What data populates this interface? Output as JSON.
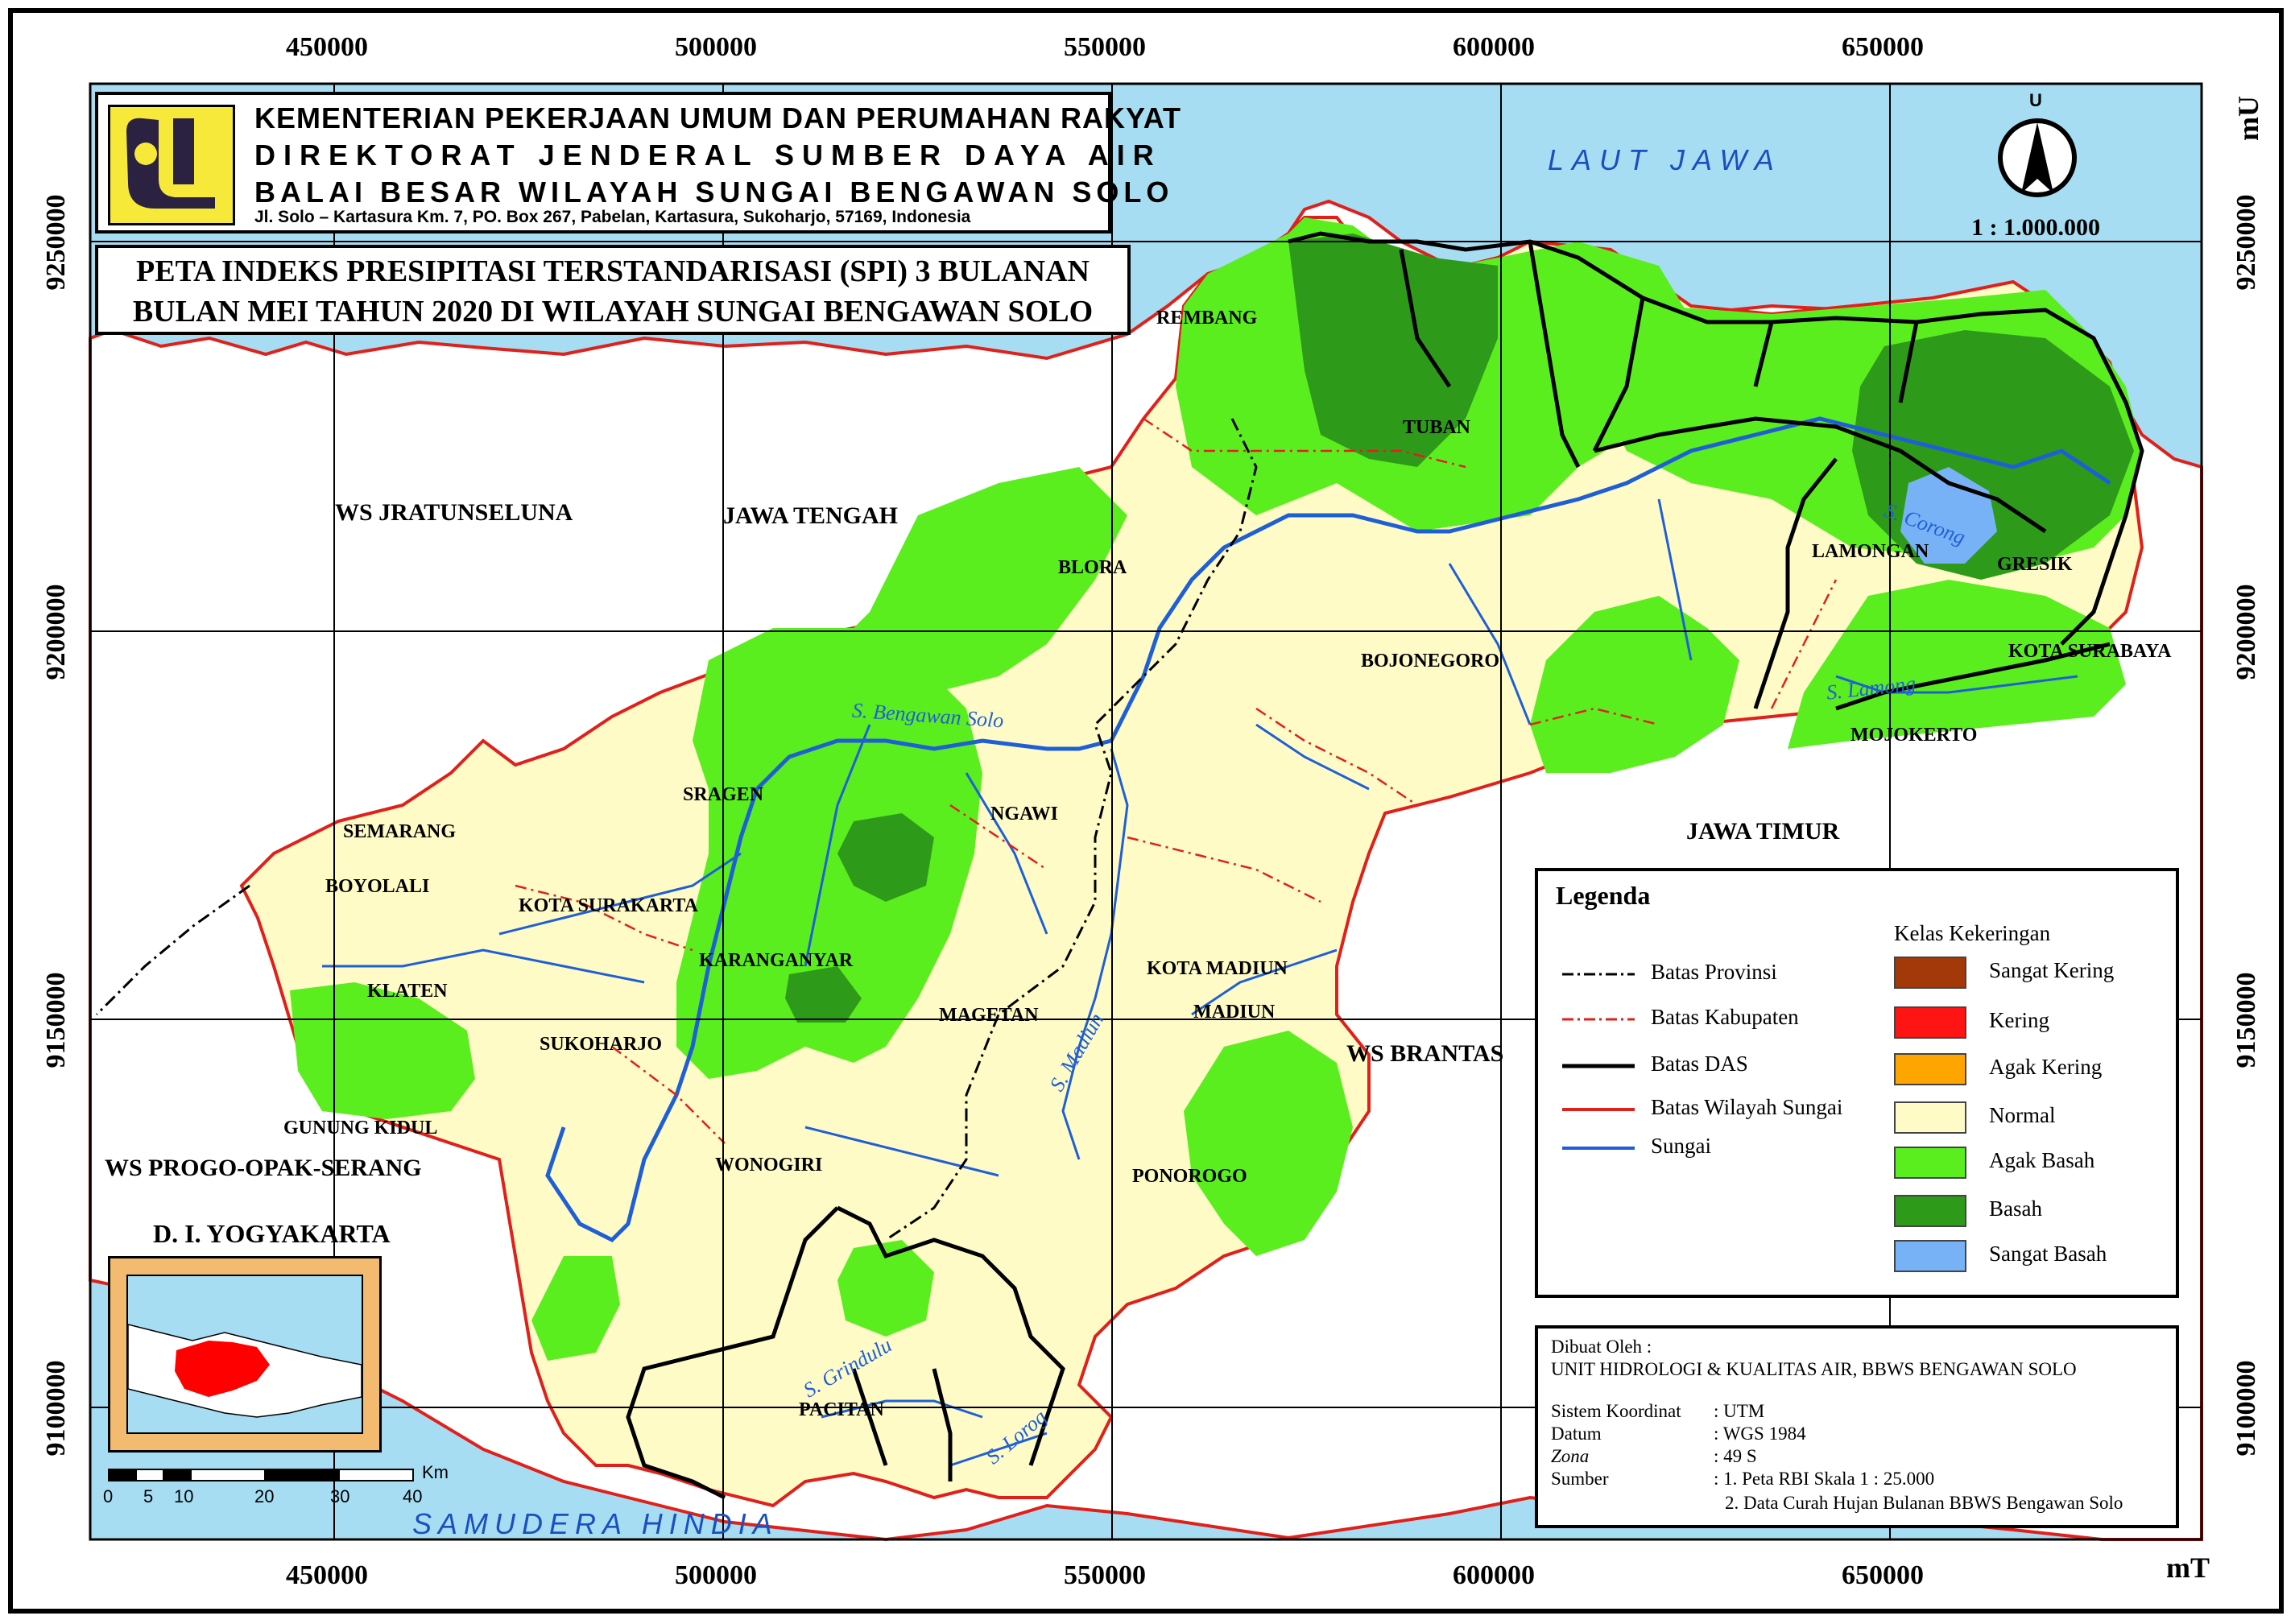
{
  "header": {
    "line1": "KEMENTERIAN PEKERJAAN UMUM DAN PERUMAHAN RAKYAT",
    "line2": "DIREKTORAT JENDERAL SUMBER DAYA AIR",
    "line3": "BALAI BESAR WILAYAH SUNGAI BENGAWAN SOLO",
    "address": "Jl. Solo – Kartasura Km. 7, PO. Box 267, Pabelan, Kartasura, Sukoharjo, 57169, Indonesia"
  },
  "title": {
    "line1": "PETA INDEKS PRESIPITASI TERSTANDARISASI (SPI) 3 BULANAN",
    "line2": "BULAN MEI TAHUN 2020 DI WILAYAH SUNGAI BENGAWAN SOLO"
  },
  "axes": {
    "x_ticks": [
      "450000",
      "500000",
      "550000",
      "600000",
      "650000"
    ],
    "y_ticks": [
      "9250000",
      "9200000",
      "9150000",
      "9100000"
    ],
    "x_unit": "mT",
    "y_unit": "mU"
  },
  "north": {
    "letter": "U",
    "scale": "1 : 1.000.000"
  },
  "sea_labels": {
    "north": "LAUT JAWA",
    "south": "SAMUDERA HINDIA"
  },
  "region_labels": {
    "ws_jratunseluna": "WS JRATUNSELUNA",
    "jawa_tengah": "JAWA TENGAH",
    "jawa_timur": "JAWA TIMUR",
    "ws_brantas": "WS BRANTAS",
    "ws_progo": "WS PROGO-OPAK-SERANG",
    "diy": "D. I. YOGYAKARTA"
  },
  "place_labels": {
    "rembang": "REMBANG",
    "tuban": "TUBAN",
    "blora": "BLORA",
    "bojonegoro": "BOJONEGORO",
    "lamongan": "LAMONGAN",
    "gresik": "GRESIK",
    "kota_surabaya": "KOTA SURABAYA",
    "mojokerto": "MOJOKERTO",
    "sragen": "SRAGEN",
    "ngawi": "NGAWI",
    "semarang": "SEMARANG",
    "boyolali": "BOYOLALI",
    "kota_surakarta": "KOTA SURAKARTA",
    "karanganyar": "KARANGANYAR",
    "klaten": "KLATEN",
    "sukoharjo": "SUKOHARJO",
    "magetan": "MAGETAN",
    "kota_madiun": "KOTA MADIUN",
    "madiun": "MADIUN",
    "gunung_kidul": "GUNUNG KIDUL",
    "wonogiri": "WONOGIRI",
    "ponorogo": "PONOROGO",
    "pacitan": "PACITAN"
  },
  "river_labels": {
    "bengawan_solo": "S. Bengawan Solo",
    "madiun": "S. Madiun",
    "corong": "S. Corong",
    "lamong": "S. Lamong",
    "grindulu": "S. Grindulu",
    "lorog": "S. Lorog"
  },
  "scalebar": {
    "unit": "Km",
    "ticks": [
      "0",
      "5",
      "10",
      "20",
      "30",
      "40"
    ]
  },
  "legend": {
    "title": "Legenda",
    "class_title": "Kelas Kekeringan",
    "lines": [
      {
        "label": "Batas Provinsi",
        "color": "#000000",
        "style": "dashdot"
      },
      {
        "label": "Batas Kabupaten",
        "color": "#e0201b",
        "style": "dashdot"
      },
      {
        "label": "Batas DAS",
        "color": "#000000",
        "style": "solid"
      },
      {
        "label": "Batas Wilayah Sungai",
        "color": "#e0201b",
        "style": "solid"
      },
      {
        "label": "Sungai",
        "color": "#1f5fd6",
        "style": "solid"
      }
    ],
    "classes": [
      {
        "label": "Sangat Kering",
        "color": "#a33808"
      },
      {
        "label": "Kering",
        "color": "#ff1414"
      },
      {
        "label": "Agak Kering",
        "color": "#ffa500"
      },
      {
        "label": "Normal",
        "color": "#fefbc7"
      },
      {
        "label": "Agak Basah",
        "color": "#5bee1f"
      },
      {
        "label": "Basah",
        "color": "#2e9a1a"
      },
      {
        "label": "Sangat Basah",
        "color": "#78b2f6"
      }
    ]
  },
  "credits": {
    "made_by_label": "Dibuat Oleh :",
    "made_by": "UNIT HIDROLOGI & KUALITAS AIR, BBWS BENGAWAN SOLO",
    "rows": [
      {
        "k": "Sistem Koordinat",
        "v": ": UTM"
      },
      {
        "k": "Datum",
        "v": ": WGS 1984"
      },
      {
        "k": "Zona",
        "v": ": 49 S"
      },
      {
        "k": "Sumber",
        "v": ": 1. Peta RBI Skala 1 : 25.000"
      }
    ],
    "source2": "2. Data Curah Hujan Bulanan BBWS Bengawan Solo"
  },
  "colors": {
    "sea": "#a6ddf2",
    "land": "#ffffff",
    "boundary": "#e0201b",
    "river": "#1f5fd6",
    "inset_bg": "#f3bb70",
    "inset_region": "#ff0000"
  }
}
